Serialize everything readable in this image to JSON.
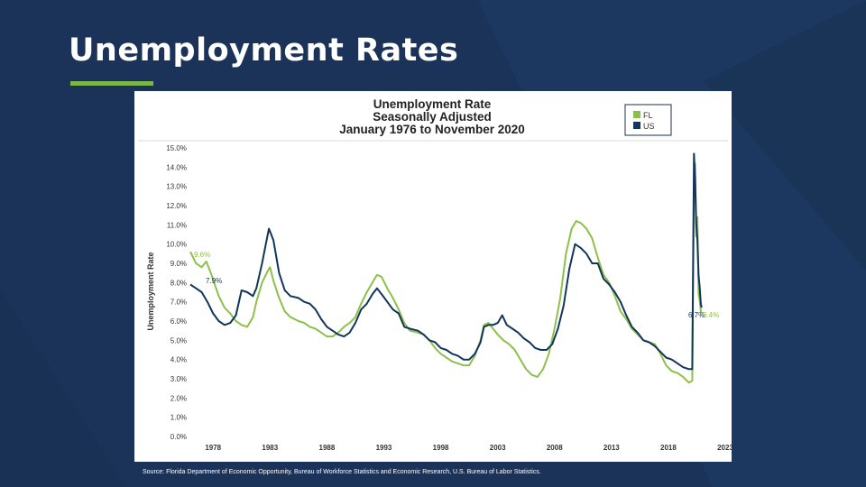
{
  "slide": {
    "title": "Unemployment Rates",
    "source": "Source: Florida Department of Economic Opportunity, Bureau of Workforce Statistics and Economic Research, U.S. Bureau of Labor Statistics."
  },
  "colors": {
    "background": "#1b3358",
    "accent": "#7ab648",
    "fl_series": "#8dc04a",
    "us_series": "#12365a"
  },
  "chart_data": {
    "type": "line",
    "title": [
      "Unemployment Rate",
      "Seasonally Adjusted",
      "January 1976 to November 2020"
    ],
    "ylabel": "Unemployment Rate",
    "xlabel": "",
    "ylim": [
      0,
      15
    ],
    "xlim": [
      1976,
      2023
    ],
    "y_ticks": [
      "15.0%",
      "14.0%",
      "13.0%",
      "12.0%",
      "11.0%",
      "10.0%",
      "9.0%",
      "8.0%",
      "7.0%",
      "6.0%",
      "5.0%",
      "4.0%",
      "3.0%",
      "2.0%",
      "1.0%",
      "0.0%"
    ],
    "x_ticks": [
      "1978",
      "1983",
      "1988",
      "1993",
      "1998",
      "2003",
      "2008",
      "2013",
      "2018",
      "2023"
    ],
    "legend": {
      "position": "top-right",
      "entries": [
        "FL",
        "US"
      ]
    },
    "grid": false,
    "series": [
      {
        "name": "FL",
        "color": "#8dc04a",
        "points": [
          [
            1976.0,
            9.6
          ],
          [
            1976.5,
            9.0
          ],
          [
            1977.0,
            8.8
          ],
          [
            1977.4,
            9.1
          ],
          [
            1977.8,
            8.5
          ],
          [
            1978.5,
            7.3
          ],
          [
            1979.0,
            6.7
          ],
          [
            1979.5,
            6.4
          ],
          [
            1980.0,
            6.0
          ],
          [
            1980.5,
            5.8
          ],
          [
            1981.0,
            5.7
          ],
          [
            1981.5,
            6.2
          ],
          [
            1981.8,
            7.0
          ],
          [
            1982.3,
            8.0
          ],
          [
            1982.8,
            8.6
          ],
          [
            1983.0,
            8.8
          ],
          [
            1983.3,
            8.1
          ],
          [
            1983.8,
            7.2
          ],
          [
            1984.3,
            6.5
          ],
          [
            1984.8,
            6.2
          ],
          [
            1985.5,
            6.0
          ],
          [
            1986.0,
            5.9
          ],
          [
            1986.5,
            5.7
          ],
          [
            1987.0,
            5.6
          ],
          [
            1987.5,
            5.4
          ],
          [
            1988.0,
            5.2
          ],
          [
            1988.5,
            5.2
          ],
          [
            1989.0,
            5.4
          ],
          [
            1989.5,
            5.7
          ],
          [
            1990.0,
            5.9
          ],
          [
            1990.5,
            6.2
          ],
          [
            1991.0,
            6.9
          ],
          [
            1991.5,
            7.5
          ],
          [
            1992.0,
            8.0
          ],
          [
            1992.4,
            8.4
          ],
          [
            1992.8,
            8.3
          ],
          [
            1993.3,
            7.7
          ],
          [
            1993.8,
            7.2
          ],
          [
            1994.3,
            6.6
          ],
          [
            1994.8,
            5.9
          ],
          [
            1995.3,
            5.5
          ],
          [
            1996.0,
            5.4
          ],
          [
            1996.5,
            5.3
          ],
          [
            1997.0,
            5.0
          ],
          [
            1997.5,
            4.6
          ],
          [
            1998.0,
            4.3
          ],
          [
            1998.5,
            4.1
          ],
          [
            1999.0,
            3.9
          ],
          [
            1999.5,
            3.8
          ],
          [
            2000.0,
            3.7
          ],
          [
            2000.5,
            3.7
          ],
          [
            2001.0,
            4.2
          ],
          [
            2001.5,
            5.0
          ],
          [
            2001.8,
            5.8
          ],
          [
            2002.2,
            5.9
          ],
          [
            2002.6,
            5.6
          ],
          [
            2003.0,
            5.3
          ],
          [
            2003.5,
            5.0
          ],
          [
            2004.0,
            4.8
          ],
          [
            2004.5,
            4.5
          ],
          [
            2005.0,
            4.0
          ],
          [
            2005.5,
            3.5
          ],
          [
            2006.0,
            3.2
          ],
          [
            2006.5,
            3.1
          ],
          [
            2007.0,
            3.5
          ],
          [
            2007.5,
            4.3
          ],
          [
            2008.0,
            5.6
          ],
          [
            2008.5,
            7.2
          ],
          [
            2009.0,
            9.5
          ],
          [
            2009.5,
            10.8
          ],
          [
            2009.9,
            11.2
          ],
          [
            2010.3,
            11.1
          ],
          [
            2010.8,
            10.8
          ],
          [
            2011.3,
            10.3
          ],
          [
            2011.8,
            9.3
          ],
          [
            2012.3,
            8.4
          ],
          [
            2012.8,
            8.0
          ],
          [
            2013.3,
            7.3
          ],
          [
            2013.8,
            6.5
          ],
          [
            2014.3,
            6.1
          ],
          [
            2014.8,
            5.6
          ],
          [
            2015.3,
            5.3
          ],
          [
            2015.8,
            5.0
          ],
          [
            2016.3,
            4.9
          ],
          [
            2016.8,
            4.8
          ],
          [
            2017.3,
            4.3
          ],
          [
            2017.8,
            3.7
          ],
          [
            2018.3,
            3.4
          ],
          [
            2018.8,
            3.3
          ],
          [
            2019.3,
            3.1
          ],
          [
            2019.8,
            2.8
          ],
          [
            2020.1,
            2.9
          ],
          [
            2020.25,
            12.9
          ],
          [
            2020.35,
            14.2
          ],
          [
            2020.45,
            10.4
          ],
          [
            2020.55,
            11.4
          ],
          [
            2020.65,
            7.4
          ],
          [
            2020.75,
            7.1
          ],
          [
            2020.85,
            6.5
          ],
          [
            2020.92,
            6.4
          ]
        ]
      },
      {
        "name": "US",
        "color": "#12365a",
        "points": [
          [
            1976.0,
            7.9
          ],
          [
            1976.5,
            7.7
          ],
          [
            1977.0,
            7.5
          ],
          [
            1977.5,
            7.0
          ],
          [
            1978.0,
            6.4
          ],
          [
            1978.5,
            6.0
          ],
          [
            1979.0,
            5.8
          ],
          [
            1979.5,
            5.9
          ],
          [
            1980.0,
            6.3
          ],
          [
            1980.5,
            7.6
          ],
          [
            1981.0,
            7.5
          ],
          [
            1981.5,
            7.3
          ],
          [
            1981.8,
            7.7
          ],
          [
            1982.3,
            9.0
          ],
          [
            1982.8,
            10.5
          ],
          [
            1982.9,
            10.8
          ],
          [
            1983.3,
            10.2
          ],
          [
            1983.8,
            8.5
          ],
          [
            1984.3,
            7.6
          ],
          [
            1984.8,
            7.3
          ],
          [
            1985.5,
            7.2
          ],
          [
            1986.0,
            7.0
          ],
          [
            1986.5,
            6.9
          ],
          [
            1987.0,
            6.6
          ],
          [
            1987.5,
            6.1
          ],
          [
            1988.0,
            5.7
          ],
          [
            1988.5,
            5.5
          ],
          [
            1989.0,
            5.3
          ],
          [
            1989.5,
            5.2
          ],
          [
            1990.0,
            5.4
          ],
          [
            1990.5,
            5.9
          ],
          [
            1991.0,
            6.6
          ],
          [
            1991.5,
            6.9
          ],
          [
            1992.0,
            7.4
          ],
          [
            1992.4,
            7.7
          ],
          [
            1992.8,
            7.4
          ],
          [
            1993.3,
            7.0
          ],
          [
            1993.8,
            6.6
          ],
          [
            1994.3,
            6.4
          ],
          [
            1994.8,
            5.7
          ],
          [
            1995.3,
            5.6
          ],
          [
            1996.0,
            5.5
          ],
          [
            1996.5,
            5.3
          ],
          [
            1997.0,
            5.0
          ],
          [
            1997.5,
            4.9
          ],
          [
            1998.0,
            4.6
          ],
          [
            1998.5,
            4.5
          ],
          [
            1999.0,
            4.3
          ],
          [
            1999.5,
            4.2
          ],
          [
            2000.0,
            4.0
          ],
          [
            2000.5,
            4.0
          ],
          [
            2001.0,
            4.3
          ],
          [
            2001.5,
            4.9
          ],
          [
            2001.8,
            5.7
          ],
          [
            2002.2,
            5.8
          ],
          [
            2002.6,
            5.8
          ],
          [
            2003.0,
            5.9
          ],
          [
            2003.4,
            6.3
          ],
          [
            2003.8,
            5.8
          ],
          [
            2004.3,
            5.6
          ],
          [
            2004.8,
            5.4
          ],
          [
            2005.3,
            5.1
          ],
          [
            2005.8,
            4.9
          ],
          [
            2006.3,
            4.6
          ],
          [
            2006.8,
            4.5
          ],
          [
            2007.3,
            4.5
          ],
          [
            2007.8,
            4.8
          ],
          [
            2008.3,
            5.6
          ],
          [
            2008.8,
            6.8
          ],
          [
            2009.3,
            8.7
          ],
          [
            2009.8,
            10.0
          ],
          [
            2010.3,
            9.8
          ],
          [
            2010.8,
            9.5
          ],
          [
            2011.3,
            9.0
          ],
          [
            2011.8,
            9.0
          ],
          [
            2012.3,
            8.2
          ],
          [
            2012.8,
            7.9
          ],
          [
            2013.3,
            7.5
          ],
          [
            2013.8,
            7.0
          ],
          [
            2014.3,
            6.3
          ],
          [
            2014.8,
            5.7
          ],
          [
            2015.3,
            5.4
          ],
          [
            2015.8,
            5.0
          ],
          [
            2016.3,
            4.9
          ],
          [
            2016.8,
            4.7
          ],
          [
            2017.3,
            4.4
          ],
          [
            2017.8,
            4.1
          ],
          [
            2018.3,
            4.0
          ],
          [
            2018.8,
            3.8
          ],
          [
            2019.3,
            3.6
          ],
          [
            2019.8,
            3.5
          ],
          [
            2020.1,
            3.5
          ],
          [
            2020.25,
            14.7
          ],
          [
            2020.35,
            13.3
          ],
          [
            2020.45,
            11.1
          ],
          [
            2020.55,
            10.2
          ],
          [
            2020.65,
            8.4
          ],
          [
            2020.75,
            7.8
          ],
          [
            2020.85,
            6.9
          ],
          [
            2020.92,
            6.7
          ]
        ]
      }
    ],
    "annotations": [
      "9.6%",
      "7.9%",
      "6.7%",
      "6.4%"
    ]
  }
}
